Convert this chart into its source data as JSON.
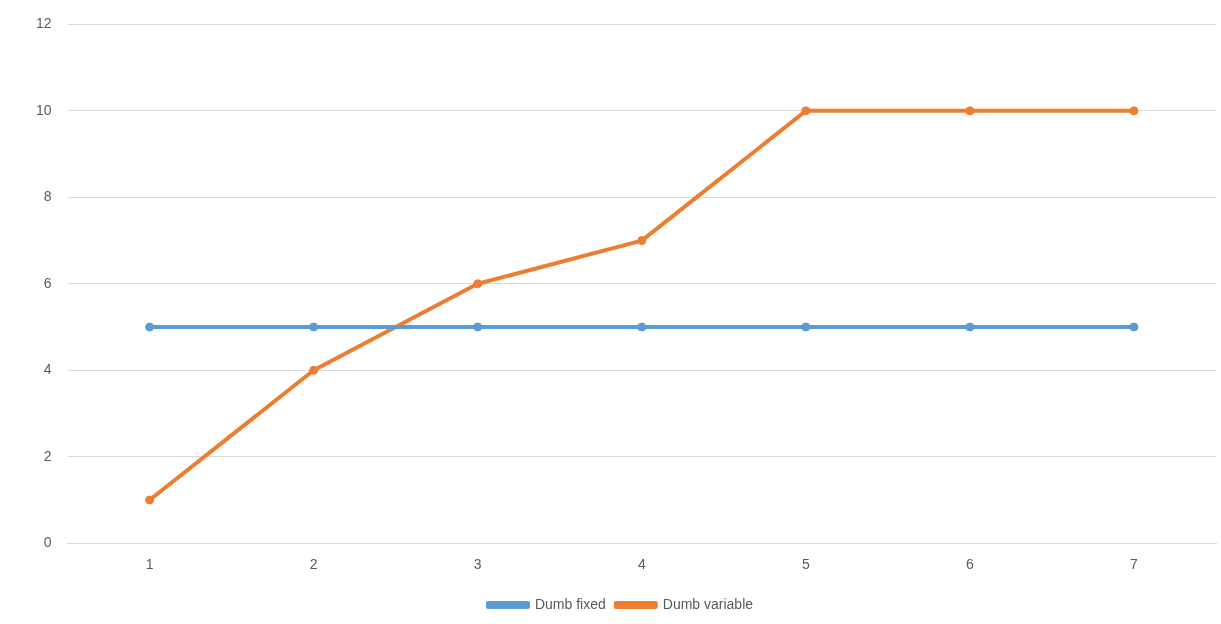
{
  "chart_data": {
    "type": "line",
    "categories": [
      "1",
      "2",
      "3",
      "4",
      "5",
      "6",
      "7"
    ],
    "series": [
      {
        "name": "Dumb fixed",
        "color": "#5b9bd5",
        "values": [
          5,
          5,
          5,
          5,
          5,
          5,
          5
        ]
      },
      {
        "name": "Dumb variable",
        "color": "#ed7d31",
        "values": [
          1,
          4,
          6,
          7,
          10,
          10,
          10
        ]
      }
    ],
    "ylim": [
      0,
      12
    ],
    "yticks": [
      0,
      2,
      4,
      6,
      8,
      10,
      12
    ],
    "grid": "y",
    "legend": "bottom",
    "marker": "circle",
    "line_style": "solid"
  }
}
